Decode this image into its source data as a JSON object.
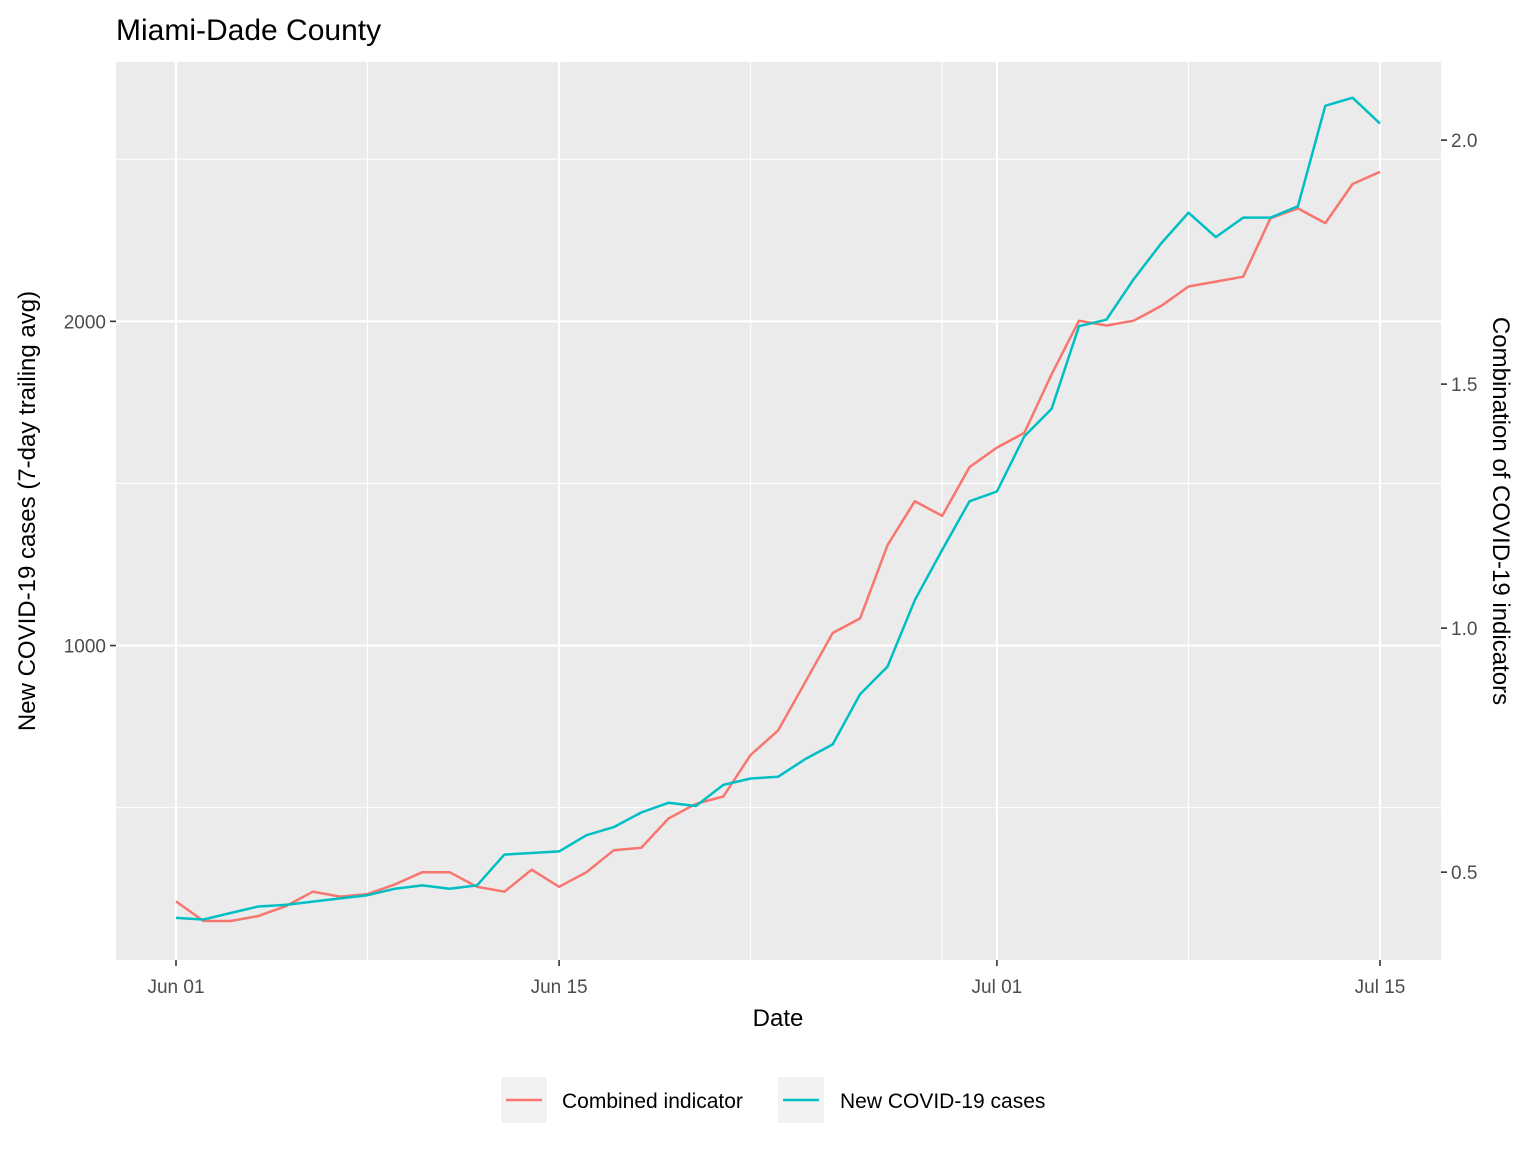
{
  "chart_data": {
    "type": "line",
    "title": "Miami-Dade County",
    "xlabel": "Date",
    "ylabel": "New COVID-19 cases (7-day trailing avg)",
    "ylabel_right": "Combination of COVID-19 indicators",
    "x_start": "2020-06-01",
    "x_end": "2020-07-15",
    "x_ticks": [
      {
        "date": "2020-06-01",
        "label": "Jun 01"
      },
      {
        "date": "2020-06-15",
        "label": "Jun 15"
      },
      {
        "date": "2020-07-01",
        "label": "Jul 01"
      },
      {
        "date": "2020-07-15",
        "label": "Jul 15"
      }
    ],
    "x_minor_ticks": [
      "2020-06-08",
      "2020-06-22",
      "2020-06-29",
      "2020-07-08"
    ],
    "ylim_left": [
      30,
      2800
    ],
    "y_ticks_left": [
      1000,
      2000
    ],
    "y_minor_left": [
      500,
      1500,
      2500
    ],
    "ylim_right": [
      0.32,
      2.16
    ],
    "y_ticks_right": [
      {
        "value": 0.5,
        "label": "0.5"
      },
      {
        "value": 1.0,
        "label": "1.0"
      },
      {
        "value": 1.5,
        "label": "1.5"
      },
      {
        "value": 2.0,
        "label": "2.0"
      }
    ],
    "grid": true,
    "legend_position": "bottom",
    "series": [
      {
        "name": "Combined indicator",
        "color": "#F8766D",
        "axis": "right",
        "x": [
          "2020-06-01",
          "2020-06-02",
          "2020-06-03",
          "2020-06-04",
          "2020-06-05",
          "2020-06-06",
          "2020-06-07",
          "2020-06-08",
          "2020-06-09",
          "2020-06-10",
          "2020-06-11",
          "2020-06-12",
          "2020-06-13",
          "2020-06-14",
          "2020-06-15",
          "2020-06-16",
          "2020-06-17",
          "2020-06-18",
          "2020-06-19",
          "2020-06-20",
          "2020-06-21",
          "2020-06-22",
          "2020-06-23",
          "2020-06-24",
          "2020-06-25",
          "2020-06-26",
          "2020-06-27",
          "2020-06-28",
          "2020-06-29",
          "2020-06-30",
          "2020-07-01",
          "2020-07-02",
          "2020-07-03",
          "2020-07-04",
          "2020-07-05",
          "2020-07-06",
          "2020-07-07",
          "2020-07-08",
          "2020-07-09",
          "2020-07-10",
          "2020-07-11",
          "2020-07-12",
          "2020-07-13",
          "2020-07-14",
          "2020-07-15"
        ],
        "values": [
          0.44,
          0.4,
          0.4,
          0.41,
          0.43,
          0.46,
          0.45,
          0.455,
          0.475,
          0.5,
          0.5,
          0.47,
          0.46,
          0.505,
          0.47,
          0.5,
          0.545,
          0.55,
          0.61,
          0.64,
          0.655,
          0.74,
          0.79,
          0.89,
          0.99,
          1.02,
          1.17,
          1.26,
          1.23,
          1.33,
          1.37,
          1.4,
          1.52,
          1.63,
          1.62,
          1.63,
          1.66,
          1.7,
          1.71,
          1.72,
          1.84,
          1.86,
          1.83,
          1.91,
          1.935
        ]
      },
      {
        "name": "New COVID-19 cases",
        "color": "#00BFC4",
        "axis": "left",
        "x": [
          "2020-06-01",
          "2020-06-02",
          "2020-06-03",
          "2020-06-04",
          "2020-06-05",
          "2020-06-06",
          "2020-06-07",
          "2020-06-08",
          "2020-06-09",
          "2020-06-10",
          "2020-06-11",
          "2020-06-12",
          "2020-06-13",
          "2020-06-14",
          "2020-06-15",
          "2020-06-16",
          "2020-06-17",
          "2020-06-18",
          "2020-06-19",
          "2020-06-20",
          "2020-06-21",
          "2020-06-22",
          "2020-06-23",
          "2020-06-24",
          "2020-06-25",
          "2020-06-26",
          "2020-06-27",
          "2020-06-28",
          "2020-06-29",
          "2020-06-30",
          "2020-07-01",
          "2020-07-02",
          "2020-07-03",
          "2020-07-04",
          "2020-07-05",
          "2020-07-06",
          "2020-07-07",
          "2020-07-08",
          "2020-07-09",
          "2020-07-10",
          "2020-07-11",
          "2020-07-12",
          "2020-07-13",
          "2020-07-14",
          "2020-07-15"
        ],
        "values": [
          160,
          155,
          175,
          195,
          200,
          210,
          220,
          230,
          250,
          260,
          250,
          260,
          355,
          360,
          365,
          415,
          440,
          485,
          515,
          505,
          570,
          590,
          595,
          650,
          695,
          850,
          935,
          1140,
          1295,
          1445,
          1475,
          1645,
          1730,
          1985,
          2005,
          2130,
          2240,
          2335,
          2260,
          2320,
          2320,
          2355,
          2665,
          2690,
          2610
        ]
      }
    ]
  }
}
